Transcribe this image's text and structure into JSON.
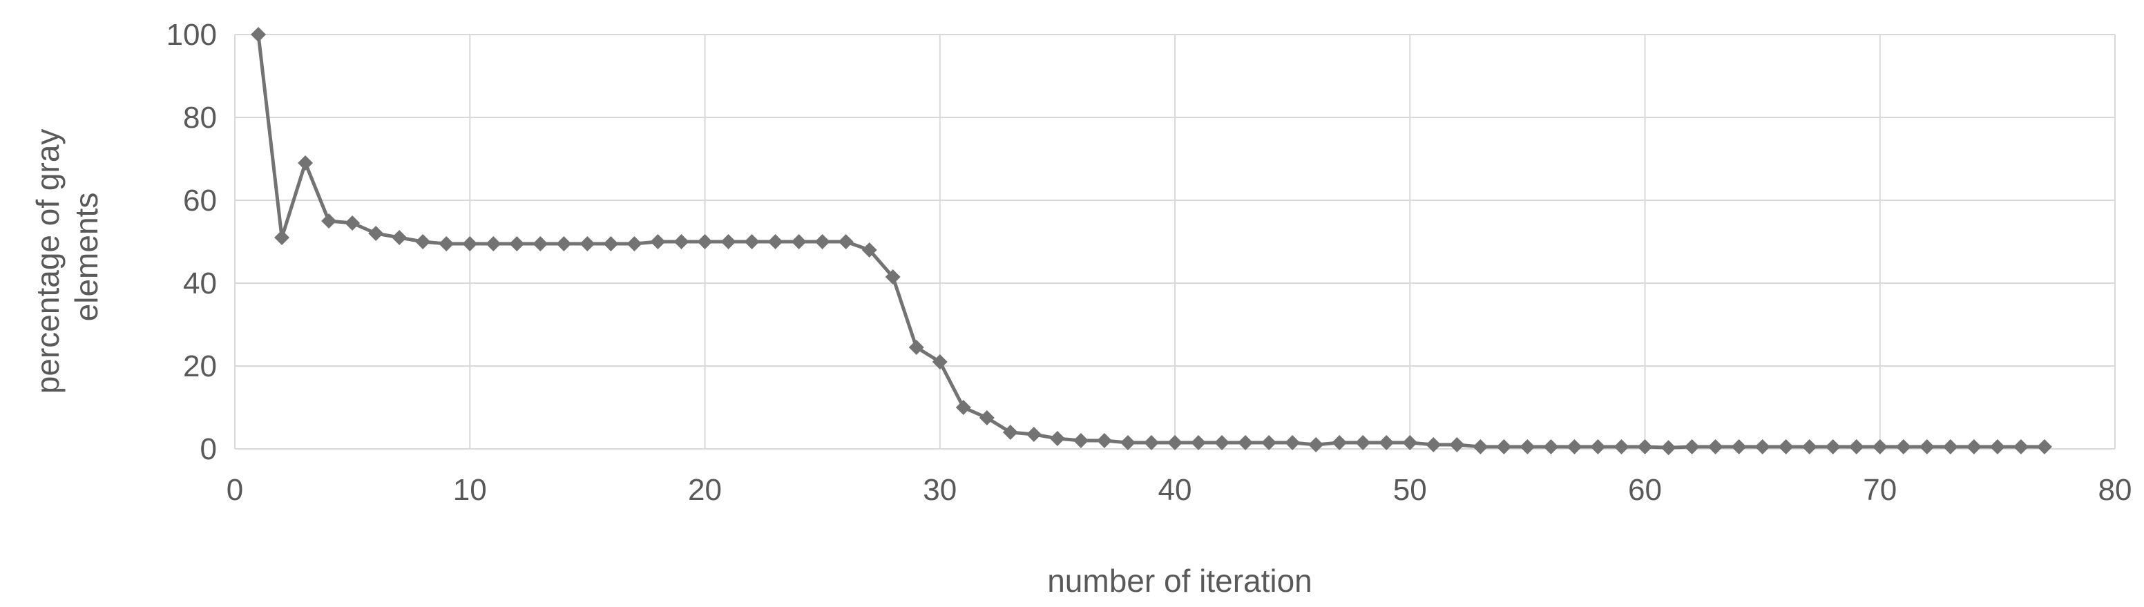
{
  "chart_data": {
    "type": "line",
    "title": "",
    "xlabel": "number of iteration",
    "ylabel": [
      "percentage of gray",
      "elements"
    ],
    "xlim": [
      0,
      80
    ],
    "ylim": [
      0,
      100
    ],
    "xticks": [
      0,
      10,
      20,
      30,
      40,
      50,
      60,
      70,
      80
    ],
    "yticks": [
      0,
      20,
      40,
      60,
      80,
      100
    ],
    "grid": true,
    "legend": "none",
    "colors": {
      "series": "#737373",
      "grid": "#d9d9d9",
      "text": "#595959"
    },
    "marker": "diamond",
    "series": [
      {
        "x": [
          1,
          2,
          3,
          4,
          5,
          6,
          7,
          8,
          9,
          10,
          11,
          12,
          13,
          14,
          15,
          16,
          17,
          18,
          19,
          20,
          21,
          22,
          23,
          24,
          25,
          26,
          27,
          28,
          29,
          30,
          31,
          32,
          33,
          34,
          35,
          36,
          37,
          38,
          39,
          40,
          41,
          42,
          43,
          44,
          45,
          46,
          47,
          48,
          49,
          50,
          51,
          52,
          53,
          54,
          55,
          56,
          57,
          58,
          59,
          60,
          61,
          62,
          63,
          64,
          65,
          66,
          67,
          68,
          69,
          70,
          71,
          72,
          73,
          74,
          75,
          76,
          77
        ],
        "values": [
          100,
          51,
          69,
          55,
          54.5,
          52,
          51,
          50,
          49.5,
          49.5,
          49.5,
          49.5,
          49.5,
          49.5,
          49.5,
          49.5,
          49.5,
          50,
          50,
          50,
          50,
          50,
          50,
          50,
          50,
          50,
          48,
          41.5,
          24.5,
          21,
          10,
          7.5,
          4,
          3.5,
          2.5,
          2,
          2,
          1.5,
          1.5,
          1.5,
          1.5,
          1.5,
          1.5,
          1.5,
          1.5,
          1,
          1.5,
          1.5,
          1.5,
          1.5,
          1,
          1,
          0.5,
          0.5,
          0.5,
          0.5,
          0.5,
          0.5,
          0.5,
          0.5,
          0.3,
          0.5,
          0.5,
          0.5,
          0.5,
          0.5,
          0.5,
          0.5,
          0.5,
          0.5,
          0.5,
          0.5,
          0.5,
          0.5,
          0.5,
          0.5,
          0.5
        ]
      }
    ]
  }
}
